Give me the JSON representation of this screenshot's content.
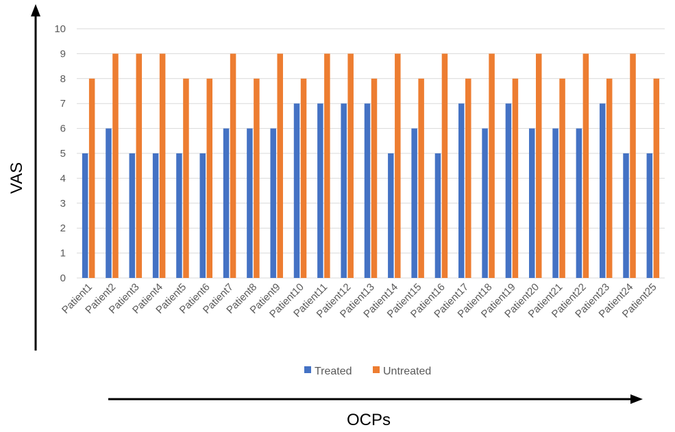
{
  "chart_data": {
    "type": "bar",
    "categories": [
      "Patient1",
      "Patient2",
      "Patient3",
      "Patient4",
      "Patient5",
      "Patient6",
      "Patient7",
      "Patient8",
      "Patient9",
      "Patient10",
      "Patient11",
      "Patient12",
      "Patient13",
      "Patient14",
      "Patient15",
      "Patient16",
      "Patient17",
      "Patient18",
      "Patient19",
      "Patient20",
      "Patient21",
      "Patient22",
      "Patient23",
      "Patient24",
      "Patient25"
    ],
    "series": [
      {
        "name": "Treated",
        "color": "#4472C4",
        "values": [
          5,
          6,
          5,
          5,
          5,
          5,
          6,
          6,
          6,
          7,
          7,
          7,
          7,
          5,
          6,
          5,
          7,
          6,
          7,
          6,
          6,
          6,
          7,
          5,
          5
        ]
      },
      {
        "name": "Untreated",
        "color": "#ED7D31",
        "values": [
          8,
          9,
          9,
          9,
          8,
          8,
          9,
          8,
          9,
          8,
          9,
          9,
          8,
          9,
          8,
          9,
          8,
          9,
          8,
          9,
          8,
          9,
          8,
          9,
          8
        ]
      }
    ],
    "title": "",
    "xlabel": "OCPs",
    "ylabel": "VAS",
    "ylim": [
      0,
      10
    ],
    "yticks": [
      0,
      1,
      2,
      3,
      4,
      5,
      6,
      7,
      8,
      9,
      10
    ],
    "grid": true,
    "legend_position": "bottom"
  }
}
